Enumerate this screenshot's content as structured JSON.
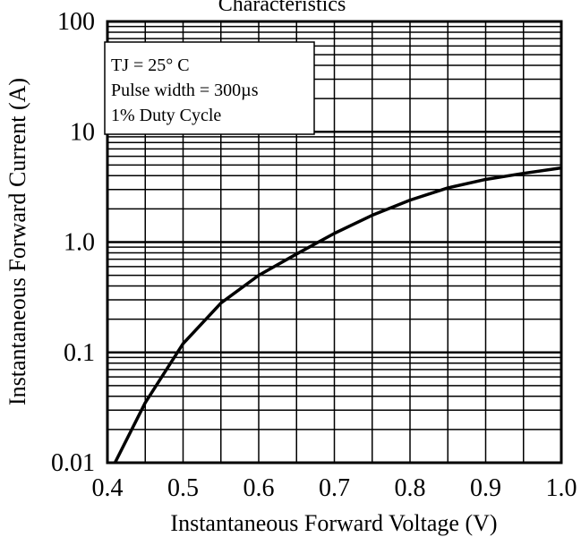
{
  "chart_data": {
    "type": "line",
    "title": "Characteristics",
    "xlabel": "Instantaneous Forward Voltage (V)",
    "ylabel": "Instantaneous Forward Current (A)",
    "xlim": [
      0.4,
      1.0
    ],
    "ylim": [
      0.01,
      100
    ],
    "y_scale": "log",
    "grid": true,
    "x_ticks": [
      "0.4",
      "0.5",
      "0.6",
      "0.7",
      "0.8",
      "0.9",
      "1.0"
    ],
    "y_ticks": [
      "0.01",
      "0.1",
      "1.0",
      "10",
      "100"
    ],
    "series": [
      {
        "x": [
          0.41,
          0.45,
          0.5,
          0.55,
          0.6,
          0.65,
          0.7,
          0.75,
          0.8,
          0.85,
          0.9,
          0.95,
          1.0
        ],
        "y": [
          0.01,
          0.035,
          0.12,
          0.28,
          0.5,
          0.78,
          1.2,
          1.75,
          2.4,
          3.1,
          3.7,
          4.2,
          4.7
        ]
      }
    ],
    "legend": [
      "TJ = 25° C",
      "Pulse width = 300µs",
      "1% Duty Cycle"
    ]
  }
}
